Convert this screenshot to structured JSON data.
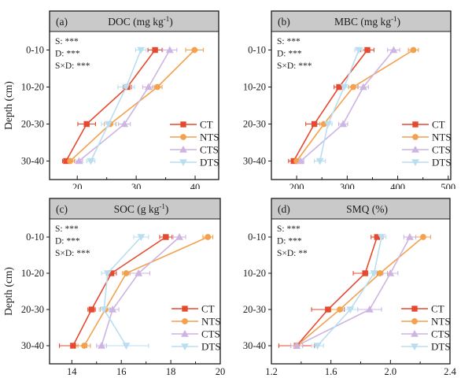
{
  "figure": {
    "ylabel": "Depth (cm)",
    "categories": [
      "0-10",
      "10-20",
      "20-30",
      "30-40"
    ],
    "colors": {
      "background": "#ffffff",
      "frame": "#1a1a1a",
      "header_fill": "#c9c9c9",
      "text": "#1a1a1a"
    },
    "legend_entries": [
      "CT",
      "NTS",
      "CTS",
      "DTS"
    ]
  },
  "series_styles": [
    {
      "name": "CT",
      "color": "#e5492f",
      "marker": "square"
    },
    {
      "name": "NTS",
      "color": "#f4a14e",
      "marker": "circle"
    },
    {
      "name": "CTS",
      "color": "#cdb4e2",
      "marker": "triangle-up"
    },
    {
      "name": "DTS",
      "color": "#b9def0",
      "marker": "triangle-down"
    }
  ],
  "chart_data": [
    {
      "type": "line",
      "panel_label": "(a)",
      "title": "DOC (mg kg⁻¹)",
      "title_parts": {
        "main": "DOC (mg kg",
        "sup": "-1",
        "end": ")"
      },
      "xlabel": "",
      "ylabel": "Depth (cm)",
      "show_ylabel": true,
      "categories": [
        "0-10",
        "10-20",
        "20-30",
        "30-40"
      ],
      "annotations": [
        "S: ***",
        "D: ***",
        "S×D: ***"
      ],
      "xlim": [
        15.3,
        44
      ],
      "xticks": [
        20,
        30,
        40
      ],
      "xtick_labels": [
        "20",
        "30",
        "40"
      ],
      "xminor": [
        25,
        35
      ],
      "legend_position": "lower-right",
      "series": [
        {
          "name": "CT",
          "values": [
            33.2,
            28.5,
            21.6,
            18.1
          ],
          "err": [
            1.2,
            0.7,
            1.5,
            0.6
          ]
        },
        {
          "name": "NTS",
          "values": [
            39.9,
            33.6,
            25.6,
            18.8
          ],
          "err": [
            1.5,
            0.8,
            1.0,
            0.7
          ]
        },
        {
          "name": "CTS",
          "values": [
            35.7,
            32.1,
            28.0,
            20.3
          ],
          "err": [
            1.2,
            1.0,
            1.0,
            0.6
          ]
        },
        {
          "name": "DTS",
          "values": [
            30.8,
            28.3,
            25.3,
            22.3
          ],
          "err": [
            0.9,
            1.4,
            1.2,
            0.7
          ]
        }
      ]
    },
    {
      "type": "line",
      "panel_label": "(b)",
      "title": "MBC (mg kg⁻¹)",
      "title_parts": {
        "main": "MBC (mg kg",
        "sup": "-1",
        "end": ")"
      },
      "xlabel": "",
      "ylabel": "",
      "show_ylabel": false,
      "categories": [
        "0-10",
        "10-20",
        "20-30",
        "30-40"
      ],
      "annotations": [
        "S: ***",
        "D: ***",
        "S×D: ***"
      ],
      "xlim": [
        150,
        505
      ],
      "xticks": [
        200,
        300,
        400,
        500
      ],
      "xtick_labels": [
        "200",
        "300",
        "400",
        "500"
      ],
      "xminor": [
        250,
        350,
        450
      ],
      "legend_position": "lower-right",
      "series": [
        {
          "name": "CT",
          "values": [
            340,
            284,
            235,
            194
          ],
          "err": [
            13,
            10,
            17,
            10
          ]
        },
        {
          "name": "NTS",
          "values": [
            431,
            312,
            254,
            200
          ],
          "err": [
            10,
            9,
            8,
            8
          ]
        },
        {
          "name": "CTS",
          "values": [
            392,
            332,
            292,
            208
          ],
          "err": [
            12,
            10,
            9,
            6
          ]
        },
        {
          "name": "DTS",
          "values": [
            323,
            294,
            262,
            246
          ],
          "err": [
            8,
            8,
            8,
            11
          ]
        }
      ]
    },
    {
      "type": "line",
      "panel_label": "(c)",
      "title": "SOC (g kg⁻¹)",
      "title_parts": {
        "main": "SOC (g kg",
        "sup": "-1",
        "end": ")"
      },
      "xlabel": "",
      "ylabel": "Depth (cm)",
      "show_ylabel": true,
      "categories": [
        "0-10",
        "10-20",
        "20-30",
        "30-40"
      ],
      "annotations": [
        "S: ***",
        "D: ***",
        "S×D: ***"
      ],
      "xlim": [
        13.1,
        20
      ],
      "xticks": [
        14,
        16,
        18,
        20
      ],
      "xtick_labels": [
        "14",
        "16",
        "18",
        "20"
      ],
      "xminor": [
        15,
        17,
        19
      ],
      "legend_position": "lower-right",
      "series": [
        {
          "name": "CT",
          "values": [
            17.8,
            15.6,
            14.8,
            14.05
          ],
          "err": [
            0.25,
            0.2,
            0.15,
            0.55
          ]
        },
        {
          "name": "NTS",
          "values": [
            19.5,
            16.2,
            15.35,
            14.5
          ],
          "err": [
            0.2,
            0.15,
            0.2,
            0.25
          ]
        },
        {
          "name": "CTS",
          "values": [
            18.35,
            16.7,
            15.65,
            15.2
          ],
          "err": [
            0.25,
            0.45,
            0.25,
            0.2
          ]
        },
        {
          "name": "DTS",
          "values": [
            16.8,
            15.45,
            15.3,
            16.2
          ],
          "err": [
            0.3,
            0.25,
            0.2,
            0.9
          ]
        }
      ]
    },
    {
      "type": "line",
      "panel_label": "(d)",
      "title": "SMQ (%)",
      "title_parts": {
        "main": "SMQ (%)",
        "sup": "",
        "end": ""
      },
      "xlabel": "",
      "ylabel": "",
      "show_ylabel": false,
      "categories": [
        "0-10",
        "10-20",
        "20-30",
        "30-40"
      ],
      "annotations": [
        "S: ***",
        "D: ***",
        "S×D: **"
      ],
      "xlim": [
        1.2,
        2.4
      ],
      "xticks": [
        1.2,
        1.6,
        2.0,
        2.4
      ],
      "xtick_labels": [
        "1.2",
        "1.6",
        "2.0",
        "2.4"
      ],
      "xminor": [
        1.4,
        1.8,
        2.2
      ],
      "legend_position": "lower-right",
      "series": [
        {
          "name": "CT",
          "values": [
            1.91,
            1.83,
            1.58,
            1.37
          ],
          "err": [
            0.04,
            0.08,
            0.11,
            0.12
          ]
        },
        {
          "name": "NTS",
          "values": [
            2.22,
            1.93,
            1.66,
            1.37
          ],
          "err": [
            0.05,
            0.05,
            0.06,
            0.04
          ]
        },
        {
          "name": "CTS",
          "values": [
            2.13,
            2.0,
            1.86,
            1.37
          ],
          "err": [
            0.04,
            0.05,
            0.08,
            0.04
          ]
        },
        {
          "name": "DTS",
          "values": [
            1.94,
            1.89,
            1.73,
            1.51
          ],
          "err": [
            0.03,
            0.04,
            0.05,
            0.04
          ]
        }
      ]
    }
  ]
}
